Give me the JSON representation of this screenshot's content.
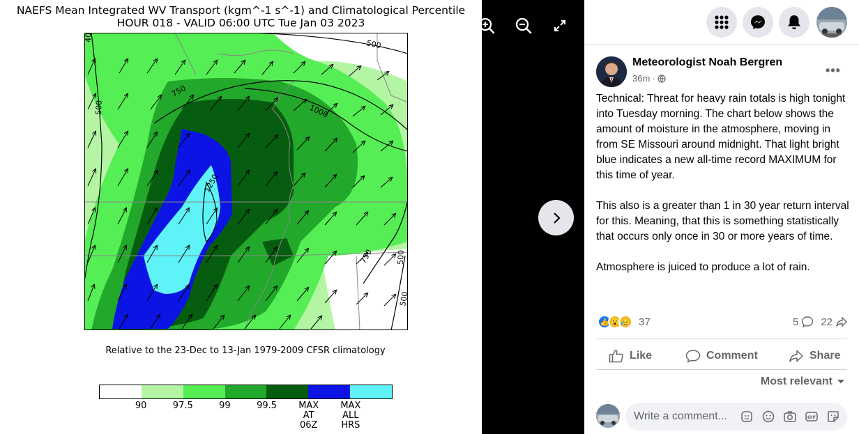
{
  "photo": {
    "title_line1": "NAEFS Mean Integrated WV Transport (kgm^-1 s^-1) and Climatological Percentile",
    "title_line2": "HOUR 018 - VALID 06:00 UTC Tue Jan 03 2023",
    "climatology_note": "Relative to the 23-Dec to 13-Jan 1979-2009 CFSR climatology",
    "map_contour_labels": [
      "500",
      "750",
      "1000",
      "1250",
      "500",
      "750",
      "500",
      "500",
      "40"
    ],
    "legend": {
      "colors": [
        "#ffffff",
        "#b3f5a3",
        "#55ee55",
        "#22a82a",
        "#075d0f",
        "#0b14e4",
        "#5ef3f7"
      ],
      "labels": [
        "90",
        "97.5",
        "99",
        "99.5",
        "MAX AT 06Z",
        "MAX ALL HRS"
      ]
    }
  },
  "viewer": {
    "zoom_in_icon": "zoom-in-icon",
    "zoom_out_icon": "zoom-out-icon",
    "fullscreen_icon": "expand-icon",
    "next_icon": "chevron-right-icon"
  },
  "topbar": {
    "icons": [
      "menu-grid-icon",
      "messenger-icon",
      "bell-icon",
      "profile-avatar"
    ]
  },
  "post": {
    "author": "Meteorologist Noah Bergren",
    "time": "36m",
    "privacy_icon": "globe-icon",
    "paragraphs": [
      "Technical: Threat for heavy rain totals is high tonight into Tuesday morning. The chart below shows the amount of moisture in the atmosphere, moving in from SE Missouri around midnight. That light bright blue indicates a new all-time record MAXIMUM for this time of year.",
      "This also is a greater than 1 in 30 year return interval for this. Meaning, that this is something statistically that occurs only once in 30 or more years of time.",
      "Atmosphere is juiced to produce a lot of rain."
    ],
    "reaction_count": "37",
    "comment_count": "5",
    "share_count": "22",
    "actions": {
      "like": "Like",
      "comment": "Comment",
      "share": "Share"
    },
    "sort_label": "Most relevant",
    "comment_placeholder": "Write a comment..."
  }
}
